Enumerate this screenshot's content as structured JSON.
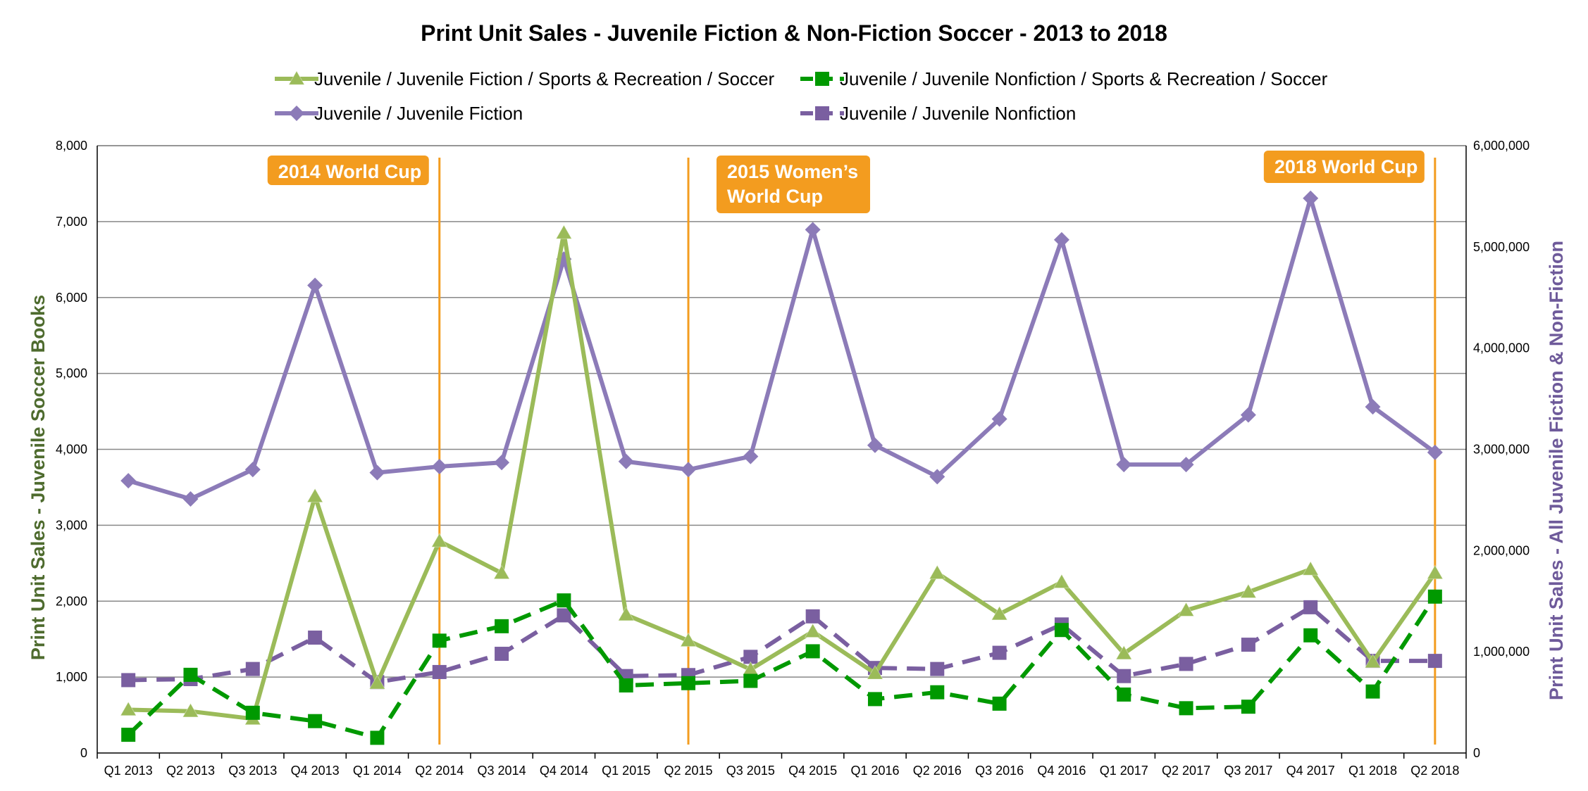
{
  "chart_data": {
    "type": "line",
    "title": "Print Unit Sales - Juvenile Fiction & Non-Fiction Soccer - 2013 to 2018",
    "categories": [
      "Q1 2013",
      "Q2 2013",
      "Q3 2013",
      "Q4 2013",
      "Q1 2014",
      "Q2 2014",
      "Q3 2014",
      "Q4 2014",
      "Q1 2015",
      "Q2 2015",
      "Q3 2015",
      "Q4 2015",
      "Q1 2016",
      "Q2 2016",
      "Q3 2016",
      "Q4 2016",
      "Q1 2017",
      "Q2 2017",
      "Q3 2017",
      "Q4 2017",
      "Q1 2018",
      "Q2 2018"
    ],
    "ylabel_left": "Print Unit Sales - Juvenile Soccer Books",
    "ylabel_right": "Print Unit Sales - All Juvenile Fiction & Non-Fiction",
    "ylim_left": [
      0,
      8000
    ],
    "ylim_right": [
      0,
      6000000
    ],
    "yticks_left": [
      "0",
      "1,000",
      "2,000",
      "3,000",
      "4,000",
      "5,000",
      "6,000",
      "7,000",
      "8,000"
    ],
    "yticks_right": [
      "0",
      "1,000,000",
      "2,000,000",
      "3,000,000",
      "4,000,000",
      "5,000,000",
      "6,000,000"
    ],
    "grid": "horizontal",
    "legend_position": "top",
    "series": [
      {
        "name": "Juvenile / Juvenile Fiction / Sports & Recreation / Soccer",
        "axis": "left",
        "color": "#9BBB59",
        "dash": "solid",
        "marker": "triangle",
        "values": [
          570,
          550,
          450,
          3380,
          920,
          2790,
          2370,
          6850,
          1820,
          1480,
          1100,
          1600,
          1050,
          2370,
          1830,
          2250,
          1310,
          1880,
          2120,
          2420,
          1200,
          2370
        ]
      },
      {
        "name": "Juvenile / Juvenile Nonfiction / Sports & Recreation / Soccer",
        "axis": "left",
        "color": "#009900",
        "dash": "dashed",
        "marker": "square",
        "values": [
          240,
          1030,
          530,
          420,
          200,
          1480,
          1670,
          2010,
          890,
          920,
          950,
          1340,
          710,
          800,
          650,
          1620,
          770,
          590,
          610,
          1550,
          810,
          2060
        ]
      },
      {
        "name": "Juvenile / Juvenile Fiction",
        "axis": "right",
        "color": "#8C7BB8",
        "dash": "solid",
        "marker": "diamond",
        "values": [
          2690000,
          2510000,
          2800000,
          4620000,
          2770000,
          2830000,
          2870000,
          4880000,
          2880000,
          2800000,
          2930000,
          5170000,
          3040000,
          2730000,
          3300000,
          5070000,
          2850000,
          2850000,
          3340000,
          5480000,
          3420000,
          2970000
        ]
      },
      {
        "name": "Juvenile / Juvenile Nonfiction",
        "axis": "right",
        "color": "#7A5FA0",
        "dash": "dashed",
        "marker": "square",
        "values": [
          720000,
          730000,
          830000,
          1140000,
          700000,
          800000,
          980000,
          1360000,
          760000,
          770000,
          950000,
          1350000,
          840000,
          830000,
          990000,
          1270000,
          760000,
          880000,
          1070000,
          1440000,
          910000,
          910000
        ]
      }
    ],
    "annotations": [
      {
        "label": "2014 World Cup",
        "category": "Q2 2014"
      },
      {
        "label": "2015 Women’s\nWorld Cup",
        "category": "Q2 2015"
      },
      {
        "label": "2018 World Cup",
        "category": "Q2 2018"
      }
    ]
  },
  "colors": {
    "annotation_line": "#F39C1F",
    "annotation_box": "#F39C1F",
    "grid": "#888888",
    "left_axis_label": "#4E6B2E",
    "right_axis_label": "#6E5A9A"
  }
}
